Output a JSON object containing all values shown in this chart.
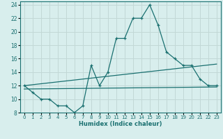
{
  "xlabel": "Humidex (Indice chaleur)",
  "bg_color": "#d8eeed",
  "grid_color": "#c2d8d6",
  "line_color": "#1a7070",
  "xlim": [
    -0.5,
    23.5
  ],
  "ylim": [
    8,
    24.5
  ],
  "xtick_labels": [
    "0",
    "1",
    "2",
    "3",
    "4",
    "5",
    "6",
    "7",
    "8",
    "9",
    "10",
    "11",
    "12",
    "13",
    "14",
    "15",
    "16",
    "17",
    "18",
    "19",
    "20",
    "21",
    "22",
    "23"
  ],
  "ytick_labels": [
    "8",
    "10",
    "12",
    "14",
    "16",
    "18",
    "20",
    "22",
    "24"
  ],
  "xtick_vals": [
    0,
    1,
    2,
    3,
    4,
    5,
    6,
    7,
    8,
    9,
    10,
    11,
    12,
    13,
    14,
    15,
    16,
    17,
    18,
    19,
    20,
    21,
    22,
    23
  ],
  "ytick_vals": [
    8,
    10,
    12,
    14,
    16,
    18,
    20,
    22,
    24
  ],
  "series_main": {
    "x": [
      0,
      1,
      2,
      3,
      4,
      5,
      6,
      7,
      8,
      9,
      10,
      11,
      12,
      13,
      14,
      15,
      16,
      17,
      18,
      19,
      20,
      21,
      22,
      23
    ],
    "y": [
      12,
      11,
      10,
      10,
      9,
      9,
      8,
      9,
      15,
      12,
      14,
      19,
      19,
      22,
      22,
      24,
      21,
      17,
      16,
      15,
      15,
      13,
      12,
      12
    ]
  },
  "series_upper": {
    "x": [
      0,
      23
    ],
    "y": [
      12.0,
      15.2
    ]
  },
  "series_lower": {
    "x": [
      0,
      23
    ],
    "y": [
      11.5,
      11.8
    ]
  }
}
